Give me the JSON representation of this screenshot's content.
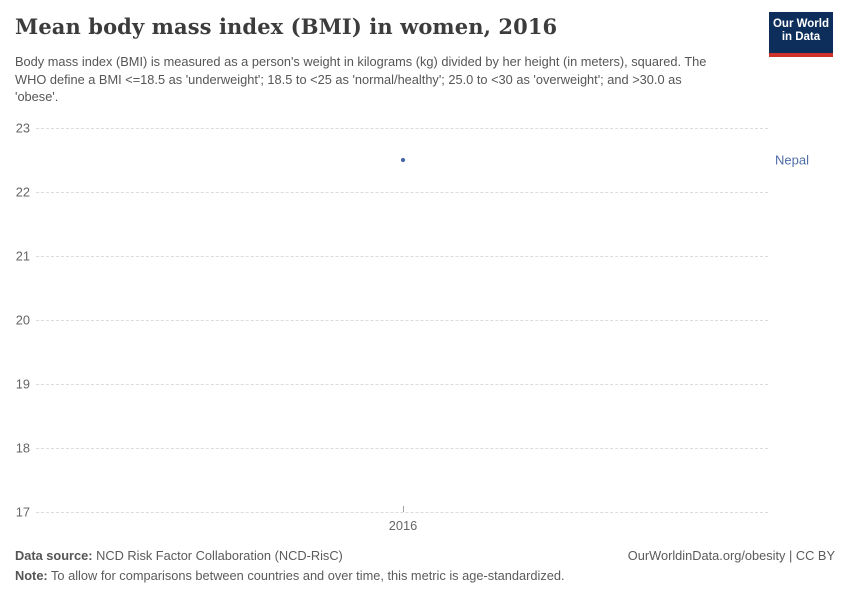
{
  "header": {
    "title": "Mean body mass index (BMI) in women, 2016",
    "subtitle": "Body mass index (BMI) is measured as a person's weight in kilograms (kg) divided by her height (in meters), squared. The WHO define a BMI <=18.5 as 'underweight'; 18.5 to <25 as 'normal/healthy'; 25.0 to <30 as 'overweight'; and >30.0 as 'obese'."
  },
  "logo": {
    "lines": [
      "Our World",
      "in Data"
    ],
    "bg_color": "#0d2e5b",
    "stripe_color": "#d0312b"
  },
  "chart_data": {
    "type": "scatter",
    "title": "Mean body mass index (BMI) in women, 2016",
    "xlabel": "",
    "ylabel": "",
    "x": [
      2016
    ],
    "series": [
      {
        "name": "Nepal",
        "x": [
          2016
        ],
        "y": [
          22.5
        ],
        "color": "#4262a5",
        "label_color": "#4e6ea8"
      }
    ],
    "xticks": [
      "2016"
    ],
    "yticks": [
      23,
      22,
      21,
      20,
      19,
      18,
      17
    ],
    "ylim": [
      17,
      23
    ],
    "grid": "horizontal-dashed",
    "gridline_color": "#dcdcdc",
    "legend_position": "right-of-point"
  },
  "footer": {
    "datasource_label": "Data source:",
    "datasource_text": " NCD Risk Factor Collaboration (NCD-RisC)",
    "rights": "OurWorldinData.org/obesity | CC BY",
    "note_label": "Note:",
    "note_text": " To allow for comparisons between countries and over time, this metric is age-standardized."
  }
}
